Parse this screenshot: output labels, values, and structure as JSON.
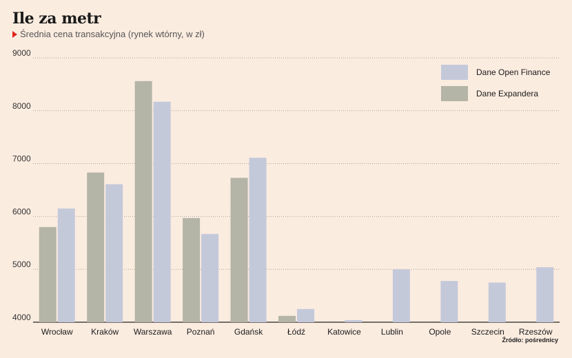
{
  "header": {
    "title": "Ile za metr",
    "subtitle": "Średnia cena transakcyjna (rynek wtórny, w zł)"
  },
  "source": "Źródło: pośrednicy",
  "colors": {
    "background": "#fbece0",
    "expander": "#b4b4a7",
    "open_finance": "#c4c9da",
    "grid": "#a9a09a",
    "title_marker": "#e0261d"
  },
  "chart_data": {
    "type": "bar",
    "title": "Ile za metr",
    "subtitle": "Średnia cena transakcyjna (rynek wtórny, w zł)",
    "categories": [
      "Wrocław",
      "Kraków",
      "Warszawa",
      "Poznań",
      "Gdańsk",
      "Łódź",
      "Katowice",
      "Lublin",
      "Opole",
      "Szczecin",
      "Rzeszów"
    ],
    "series": [
      {
        "name": "Dane Expandera",
        "color": "#b4b4a7",
        "values": [
          5800,
          6830,
          8560,
          5970,
          6730,
          4120,
          null,
          null,
          null,
          null,
          null
        ]
      },
      {
        "name": "Dane Open Finance",
        "color": "#c4c9da",
        "values": [
          6150,
          6610,
          8170,
          5670,
          7110,
          4250,
          4040,
          5000,
          4780,
          4750,
          5040
        ]
      }
    ],
    "ylim": [
      4000,
      9000
    ],
    "yticks": [
      4000,
      5000,
      6000,
      7000,
      8000,
      9000
    ],
    "xlabel": "",
    "ylabel": "",
    "grid": true,
    "legend_position": "top-right",
    "legend_order": [
      "Dane Open Finance",
      "Dane Expandera"
    ]
  }
}
